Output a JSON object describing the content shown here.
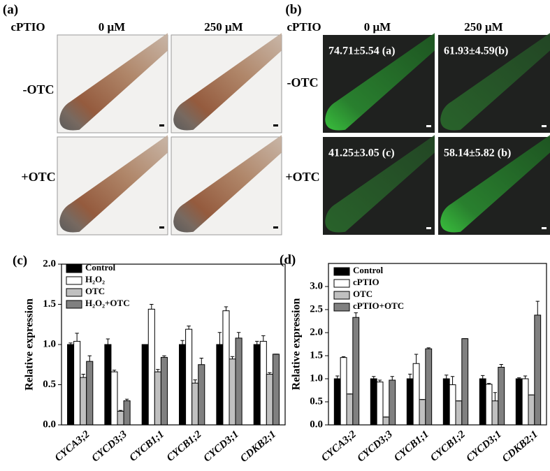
{
  "panels": [
    {
      "label": "(a)",
      "treatment": "cPTIO",
      "columns": [
        "0 μM",
        "250 μM"
      ],
      "rows": [
        "-OTC",
        "+OTC"
      ]
    },
    {
      "label": "(b)",
      "treatment": "cPTIO",
      "columns": [
        "0 μM",
        "250 μM"
      ],
      "rows": [
        "-OTC",
        "+OTC"
      ],
      "annotations": [
        "74.71±5.54 (a)",
        "61.93±4.59(b)",
        "41.25±3.05 (c)",
        "58.14±5.82 (b)"
      ]
    }
  ],
  "chart_data": [
    {
      "type": "bar",
      "panel_label": "(c)",
      "y_label": "Relative expression",
      "categories": [
        "CYCA3;2",
        "CYCD3;3",
        "CYCB1;1",
        "CYCB1;2",
        "CYCD3;1",
        "CDKB2;1"
      ],
      "series": [
        {
          "name": "Control",
          "color": "#000000",
          "values": [
            1.0,
            1.0,
            1.0,
            1.0,
            1.0,
            1.0
          ],
          "errors": [
            0.02,
            0.07,
            0.0,
            0.05,
            0.15,
            0.04
          ]
        },
        {
          "name": "H₂O₂",
          "color": "#ffffff",
          "values": [
            1.04,
            0.66,
            1.44,
            1.19,
            1.42,
            1.04
          ],
          "errors": [
            0.1,
            0.02,
            0.06,
            0.04,
            0.05,
            0.07
          ]
        },
        {
          "name": "OTC",
          "color": "#c0c0c0",
          "values": [
            0.59,
            0.17,
            0.66,
            0.52,
            0.82,
            0.63
          ],
          "errors": [
            0.04,
            0.01,
            0.03,
            0.04,
            0.03,
            0.02
          ]
        },
        {
          "name": "H₂O₂+OTC",
          "color": "#808080",
          "values": [
            0.79,
            0.3,
            0.84,
            0.75,
            1.08,
            0.88
          ],
          "errors": [
            0.07,
            0.02,
            0.02,
            0.08,
            0.07,
            0.0
          ]
        }
      ],
      "ylim": [
        0,
        2.0
      ],
      "yticks": [
        {
          "value": 0,
          "label": "0.0"
        },
        {
          "value": 0.5,
          "label": "0.5"
        },
        {
          "value": 1,
          "label": "1.0"
        },
        {
          "value": 1.5,
          "label": "1.5"
        },
        {
          "value": 2,
          "label": "2.0"
        }
      ]
    },
    {
      "type": "bar",
      "panel_label": "(d)",
      "y_label": "Relative expression",
      "categories": [
        "CYCA3;2",
        "CYCD3;3",
        "CYCB1;1",
        "CYCB1;2",
        "CYCD3;1",
        "CDKB2;1"
      ],
      "series": [
        {
          "name": "Control",
          "color": "#000000",
          "values": [
            1.0,
            1.0,
            1.0,
            1.0,
            1.0,
            1.0
          ],
          "errors": [
            0.06,
            0.05,
            0.1,
            0.08,
            0.07,
            0.02
          ]
        },
        {
          "name": "cPTIO",
          "color": "#ffffff",
          "values": [
            1.46,
            0.93,
            1.33,
            0.87,
            0.88,
            1.0
          ],
          "errors": [
            0.02,
            0.04,
            0.2,
            0.18,
            0.02,
            0.06
          ]
        },
        {
          "name": "OTC",
          "color": "#c0c0c0",
          "values": [
            0.67,
            0.17,
            0.55,
            0.52,
            0.52,
            0.65
          ],
          "errors": [
            0,
            0,
            0,
            0,
            0.18,
            0
          ]
        },
        {
          "name": "cPTIO+OTC",
          "color": "#808080",
          "values": [
            2.33,
            0.97,
            1.65,
            1.87,
            1.25,
            2.38
          ],
          "errors": [
            0.1,
            0.08,
            0.02,
            0,
            0.06,
            0.3
          ]
        }
      ],
      "ylim": [
        0,
        3.5
      ],
      "yticks": [
        {
          "value": 0,
          "label": "0.0"
        },
        {
          "value": 0.5,
          "label": "0.5"
        },
        {
          "value": 1,
          "label": "1.0"
        },
        {
          "value": 1.5,
          "label": "1.5"
        },
        {
          "value": 2,
          "label": "2.0"
        },
        {
          "value": 2.5,
          "label": "2.5"
        },
        {
          "value": 3,
          "label": "3.0"
        }
      ]
    }
  ]
}
